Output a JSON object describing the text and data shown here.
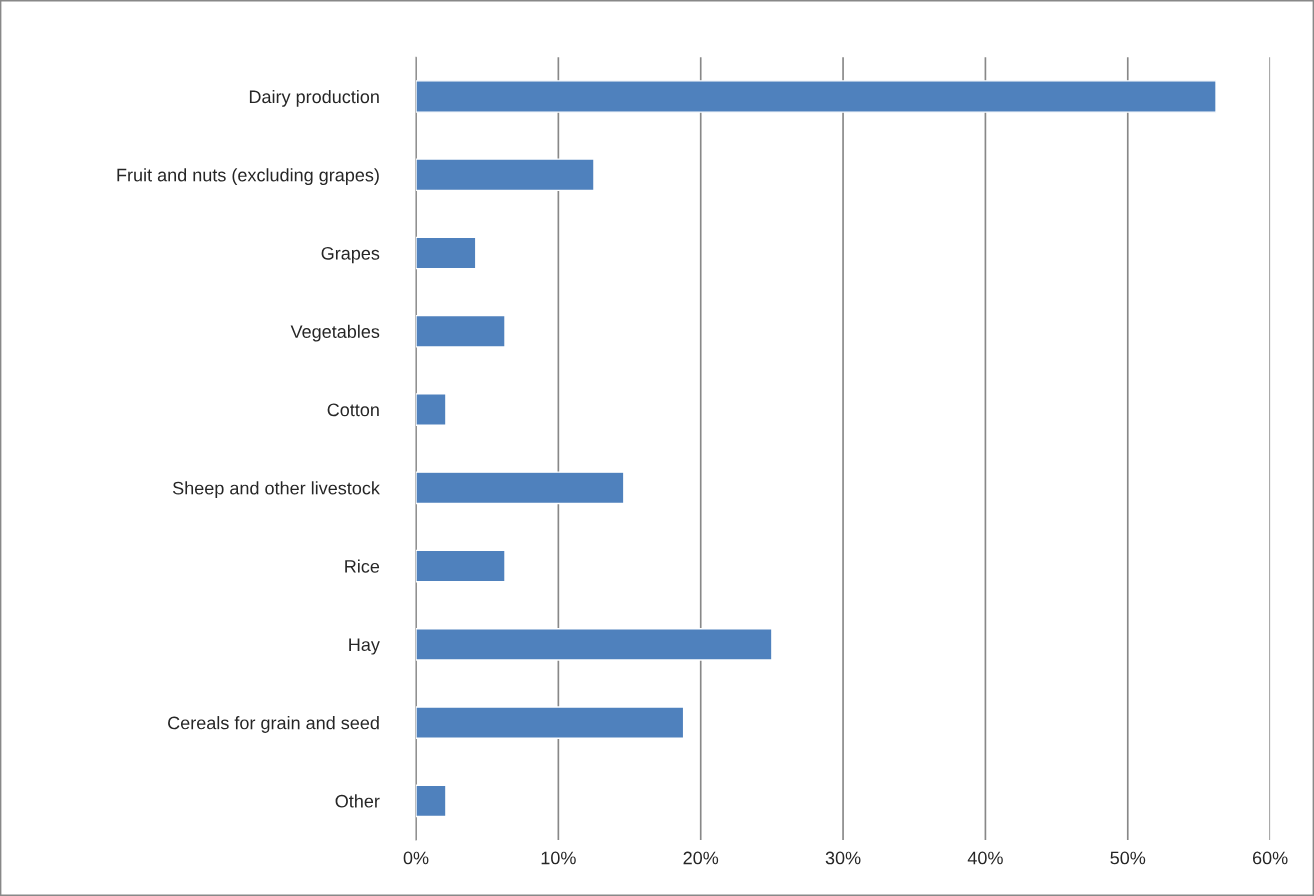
{
  "chart_data": {
    "type": "bar",
    "orientation": "horizontal",
    "categories": [
      "Dairy production",
      "Fruit and nuts (excluding grapes)",
      "Grapes",
      "Vegetables",
      "Cotton",
      "Sheep and other livestock",
      "Rice",
      "Hay",
      "Cereals for grain and seed",
      "Other"
    ],
    "values": [
      56.2,
      12.5,
      4.2,
      6.25,
      2.1,
      14.6,
      6.25,
      25.0,
      18.8,
      2.1
    ],
    "color": "#4f81bd",
    "xlim": [
      0,
      60
    ],
    "xticks": [
      {
        "value": 0,
        "label": "0%"
      },
      {
        "value": 10,
        "label": "10%"
      },
      {
        "value": 20,
        "label": "20%"
      },
      {
        "value": 30,
        "label": "30%"
      },
      {
        "value": 40,
        "label": "40%"
      },
      {
        "value": 50,
        "label": "50%"
      },
      {
        "value": 60,
        "label": "60%"
      }
    ],
    "grid": "x"
  }
}
